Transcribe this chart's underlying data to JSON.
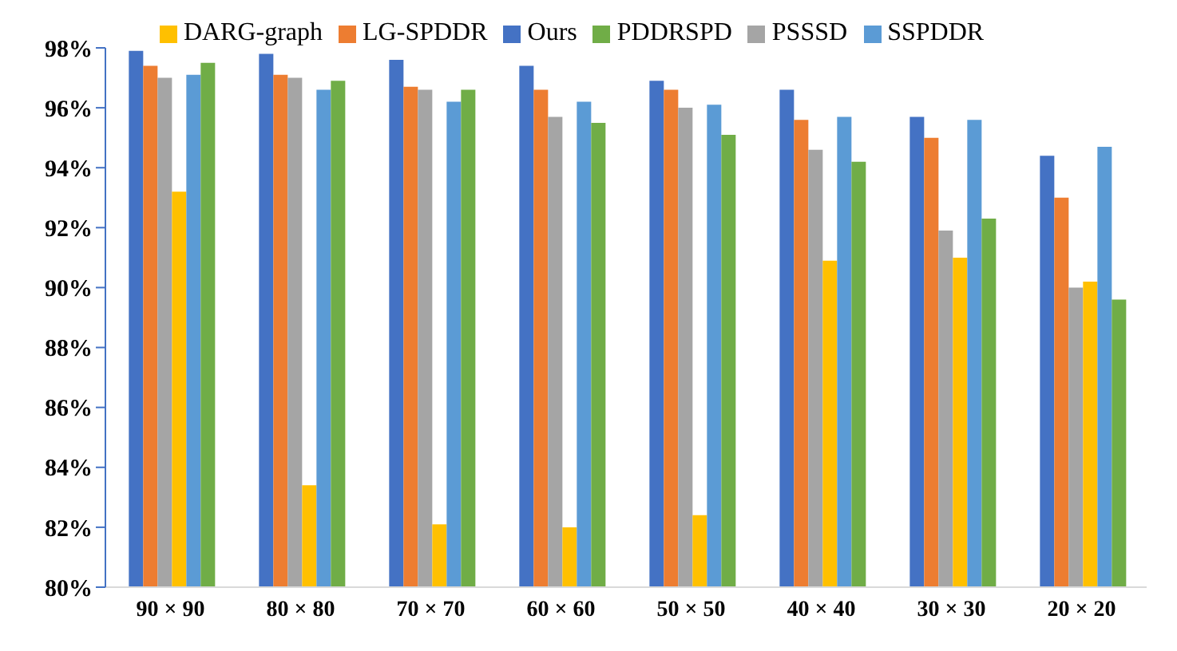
{
  "chart_data": {
    "type": "bar",
    "categories": [
      "90 × 90",
      "80 × 80",
      "70 × 70",
      "60 × 60",
      "50 × 50",
      "40 × 40",
      "30 × 30",
      "20 × 20"
    ],
    "series": [
      {
        "name": "Ours",
        "color": "#4472c4",
        "values": [
          97.9,
          97.8,
          97.6,
          97.4,
          96.9,
          96.6,
          95.7,
          94.4
        ]
      },
      {
        "name": "LG-SPDDR",
        "color": "#ed7d31",
        "values": [
          97.4,
          97.1,
          96.7,
          96.6,
          96.6,
          95.6,
          95.0,
          93.0
        ]
      },
      {
        "name": "PSSSD",
        "color": "#a5a5a5",
        "values": [
          97.0,
          97.0,
          96.6,
          95.7,
          96.0,
          94.6,
          91.9,
          90.0
        ]
      },
      {
        "name": "DARG-graph",
        "color": "#ffc000",
        "values": [
          93.2,
          83.4,
          82.1,
          82.0,
          82.4,
          90.9,
          91.0,
          90.2
        ]
      },
      {
        "name": "SSPDDR",
        "color": "#5b9bd5",
        "values": [
          97.1,
          96.6,
          96.2,
          96.2,
          96.1,
          95.7,
          95.6,
          94.7
        ]
      },
      {
        "name": "PDDRSPD",
        "color": "#70ad47",
        "values": [
          97.5,
          96.9,
          96.6,
          95.5,
          95.1,
          94.2,
          92.3,
          89.6
        ]
      }
    ],
    "ylim": [
      80,
      98
    ],
    "yticks": [
      {
        "value": 80,
        "label": "80%"
      },
      {
        "value": 82,
        "label": "82%"
      },
      {
        "value": 84,
        "label": "84%"
      },
      {
        "value": 86,
        "label": "86%"
      },
      {
        "value": 88,
        "label": "88%"
      },
      {
        "value": 90,
        "label": "90%"
      },
      {
        "value": 92,
        "label": "92%"
      },
      {
        "value": 94,
        "label": "94%"
      },
      {
        "value": 96,
        "label": "96%"
      },
      {
        "value": 98,
        "label": "98%"
      }
    ],
    "grid": false,
    "legend": "top"
  }
}
